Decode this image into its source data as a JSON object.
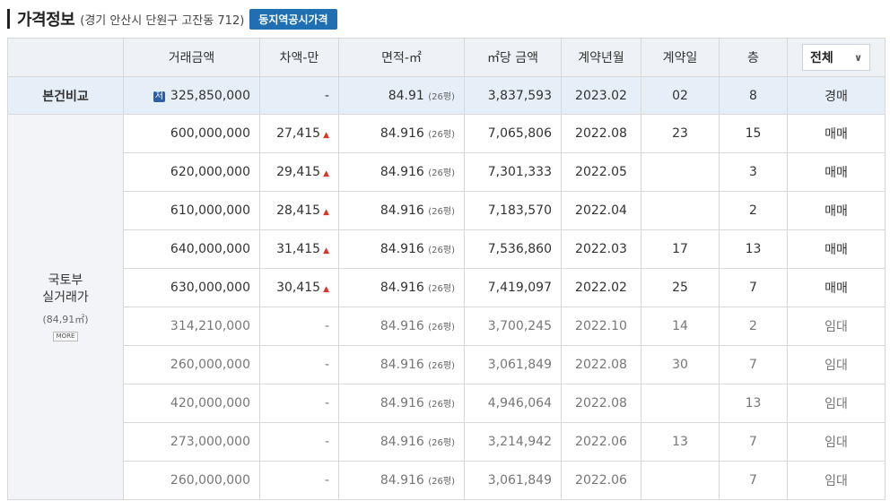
{
  "header": {
    "title": "가격정보",
    "address": "(경기 안산시 단원구 고잔동 712)",
    "badge": "동지역공시가격"
  },
  "columns": [
    "거래금액",
    "차액-만",
    "면적-㎡",
    "㎡당 금액",
    "계약년월",
    "계약일",
    "층"
  ],
  "filter": {
    "selected": "전체"
  },
  "compare": {
    "label": "본건비교",
    "tag": "저",
    "price": "325,850,000",
    "diff": "-",
    "area": "84.91",
    "pyeong": "(26평)",
    "unit_price": "3,837,593",
    "ym": "2023.02",
    "day": "02",
    "floor": "8",
    "type": "경매"
  },
  "group": {
    "title_line1": "국토부",
    "title_line2": "실거래가",
    "sub": "(84,91㎡)",
    "more": "MORE"
  },
  "up_marker": "▲",
  "rows": [
    {
      "price": "600,000,000",
      "diff": "27,415",
      "up": true,
      "area": "84.916",
      "pyeong": "(26평)",
      "unit_price": "7,065,806",
      "ym": "2022.08",
      "day": "23",
      "floor": "15",
      "type": "매매"
    },
    {
      "price": "620,000,000",
      "diff": "29,415",
      "up": true,
      "area": "84.916",
      "pyeong": "(26평)",
      "unit_price": "7,301,333",
      "ym": "2022.05",
      "day": "",
      "floor": "3",
      "type": "매매"
    },
    {
      "price": "610,000,000",
      "diff": "28,415",
      "up": true,
      "area": "84.916",
      "pyeong": "(26평)",
      "unit_price": "7,183,570",
      "ym": "2022.04",
      "day": "",
      "floor": "2",
      "type": "매매"
    },
    {
      "price": "640,000,000",
      "diff": "31,415",
      "up": true,
      "area": "84.916",
      "pyeong": "(26평)",
      "unit_price": "7,536,860",
      "ym": "2022.03",
      "day": "17",
      "floor": "13",
      "type": "매매"
    },
    {
      "price": "630,000,000",
      "diff": "30,415",
      "up": true,
      "area": "84.916",
      "pyeong": "(26평)",
      "unit_price": "7,419,097",
      "ym": "2022.02",
      "day": "25",
      "floor": "7",
      "type": "매매"
    },
    {
      "price": "314,210,000",
      "diff": "-",
      "up": false,
      "area": "84.916",
      "pyeong": "(26평)",
      "unit_price": "3,700,245",
      "ym": "2022.10",
      "day": "14",
      "floor": "2",
      "type": "임대"
    },
    {
      "price": "260,000,000",
      "diff": "-",
      "up": false,
      "area": "84.916",
      "pyeong": "(26평)",
      "unit_price": "3,061,849",
      "ym": "2022.08",
      "day": "30",
      "floor": "7",
      "type": "임대"
    },
    {
      "price": "420,000,000",
      "diff": "-",
      "up": false,
      "area": "84.916",
      "pyeong": "(26평)",
      "unit_price": "4,946,064",
      "ym": "2022.08",
      "day": "",
      "floor": "13",
      "type": "임대"
    },
    {
      "price": "273,000,000",
      "diff": "-",
      "up": false,
      "area": "84.916",
      "pyeong": "(26평)",
      "unit_price": "3,214,942",
      "ym": "2022.06",
      "day": "13",
      "floor": "7",
      "type": "임대"
    },
    {
      "price": "260,000,000",
      "diff": "-",
      "up": false,
      "area": "84.916",
      "pyeong": "(26평)",
      "unit_price": "3,061,849",
      "ym": "2022.06",
      "day": "",
      "floor": "7",
      "type": "임대"
    }
  ]
}
